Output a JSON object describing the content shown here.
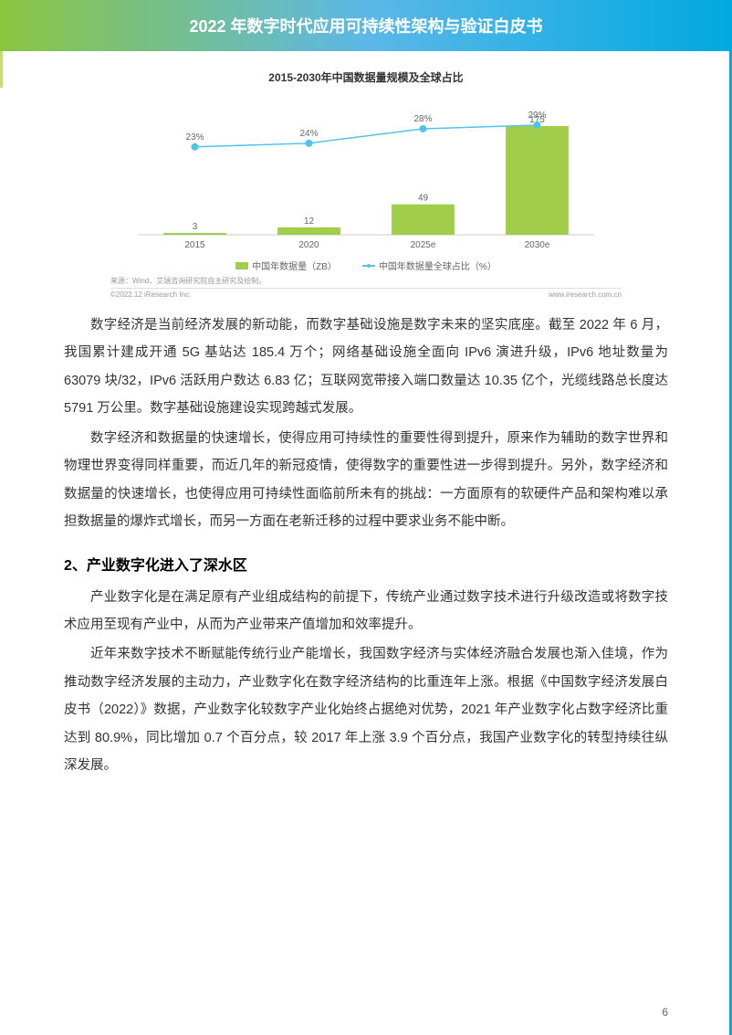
{
  "header": {
    "title": "2022 年数字时代应用可持续性架构与验证白皮书"
  },
  "chart": {
    "type": "bar+line",
    "title": "2015-2030年中国数据量规模及全球占比",
    "categories": [
      "2015",
      "2020",
      "2025e",
      "2030e"
    ],
    "bars": {
      "label": "中国年数据量（ZB）",
      "values": [
        3,
        12,
        49,
        175
      ],
      "color": "#a0cd4a",
      "bar_width": 0.55
    },
    "line": {
      "label": "中国年数据量全球占比（%）",
      "values": [
        23,
        24,
        28,
        29
      ],
      "display_values": [
        "23%",
        "24%",
        "28%",
        "29%"
      ],
      "color": "#4fc3e8",
      "marker": "circle",
      "marker_size": 4,
      "line_width": 1.5
    },
    "ylim_bars": [
      0,
      200
    ],
    "ylim_line": [
      20,
      32
    ],
    "background_color": "#ffffff",
    "axis_label_fontsize": 10,
    "value_label_fontsize": 10,
    "value_label_color": "#666666",
    "source": "来源：Wind，艾瑞咨询研究院自主研究及绘制。",
    "copyright_left": "©2022.12 iResearch Inc.",
    "copyright_right": "www.iresearch.com.cn"
  },
  "paragraphs": {
    "p1": "数字经济是当前经济发展的新动能，而数字基础设施是数字未来的坚实底座。截至 2022 年 6 月，我国累计建成开通 5G 基站达 185.4 万个；网络基础设施全面向 IPv6 演进升级，IPv6 地址数量为 63079 块/32，IPv6 活跃用户数达 6.83 亿；互联网宽带接入端口数量达 10.35 亿个，光缆线路总长度达 5791 万公里。数字基础设施建设实现跨越式发展。",
    "p2": "数字经济和数据量的快速增长，使得应用可持续性的重要性得到提升，原来作为辅助的数字世界和物理世界变得同样重要，而近几年的新冠疫情，使得数字的重要性进一步得到提升。另外，数字经济和数据量的快速增长，也使得应用可持续性面临前所未有的挑战：一方面原有的软硬件产品和架构难以承担数据量的爆炸式增长，而另一方面在老新迁移的过程中要求业务不能中断。",
    "heading": "2、产业数字化进入了深水区",
    "p3": "产业数字化是在满足原有产业组成结构的前提下，传统产业通过数字技术进行升级改造或将数字技术应用至现有产业中，从而为产业带来产值增加和效率提升。",
    "p4": "近年来数字技术不断赋能传统行业产能增长，我国数字经济与实体经济融合发展也渐入佳境，作为推动数字经济发展的主动力，产业数字化在数字经济结构的比重连年上涨。根据《中国数字经济发展白皮书（2022）》数据，产业数字化较数字产业化始终占据绝对优势，2021 年产业数字化占数字经济比重达到 80.9%，同比增加 0.7 个百分点，较 2017 年上涨 3.9 个百分点，我国产业数字化的转型持续往纵深发展。"
  },
  "page_number": "6",
  "colors": {
    "header_gradient_start": "#8bc53f",
    "header_gradient_end": "#00a9e0",
    "text_primary": "#333333",
    "text_secondary": "#666666",
    "text_muted": "#999999"
  }
}
